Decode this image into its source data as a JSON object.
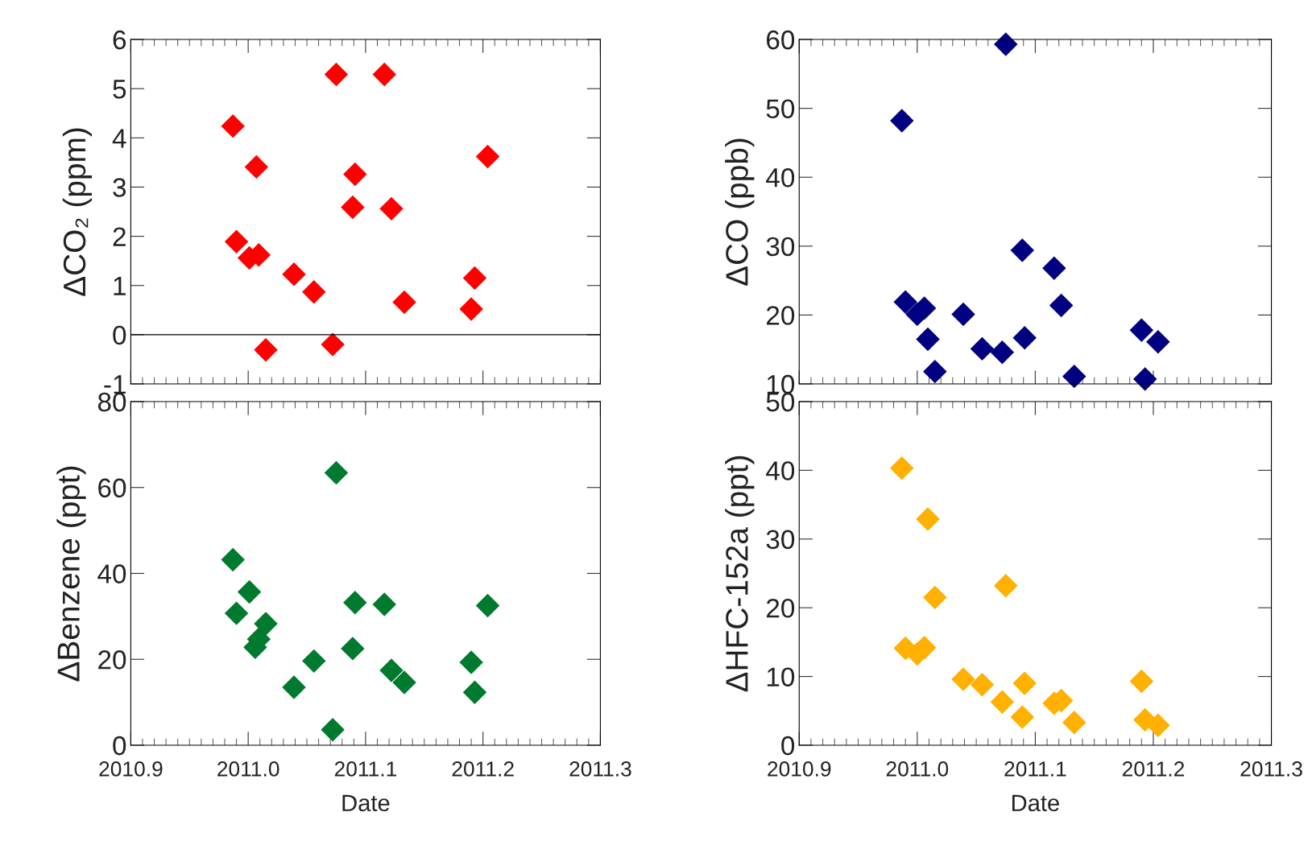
{
  "chart_data": [
    {
      "type": "scatter",
      "ylabel": "ΔCO₂ (ppm)",
      "marker": "diamond",
      "grid": false,
      "tick_labels": "y",
      "x": [
        2010.987,
        2010.99,
        2011.001,
        2011.009,
        2011.007,
        2011.015,
        2011.039,
        2011.056,
        2011.072,
        2011.075,
        2011.089,
        2011.091,
        2011.116,
        2011.122,
        2011.133,
        2011.19,
        2011.193,
        2011.204
      ],
      "series": [
        {
          "color": "#ff0000",
          "values": [
            4.24,
            1.89,
            1.56,
            1.62,
            3.41,
            -0.31,
            1.23,
            0.87,
            -0.2,
            5.29,
            2.59,
            3.26,
            5.29,
            2.56,
            0.66,
            0.52,
            1.15,
            3.62
          ]
        }
      ],
      "xlim": [
        2010.9,
        2011.3
      ],
      "xticks": [
        {
          "value": 2010.9,
          "label": null
        },
        {
          "value": 2011.0,
          "label": null
        },
        {
          "value": 2011.1,
          "label": null
        },
        {
          "value": 2011.2,
          "label": null
        },
        {
          "value": 2011.3,
          "label": null
        }
      ],
      "ylim": [
        -1,
        6
      ],
      "yticks": [
        -1,
        0,
        1,
        2,
        3,
        4,
        5,
        6
      ],
      "ref_lines": [
        {
          "axis": "y",
          "value": 0,
          "color": "#000000"
        }
      ]
    },
    {
      "type": "scatter",
      "ylabel": "ΔCO (ppb)",
      "marker": "diamond",
      "grid": false,
      "tick_labels": "y",
      "x": [
        2010.987,
        2010.99,
        2011.0,
        2011.006,
        2011.009,
        2011.015,
        2011.039,
        2011.055,
        2011.072,
        2011.075,
        2011.089,
        2011.091,
        2011.116,
        2011.122,
        2011.133,
        2011.19,
        2011.193,
        2011.204
      ],
      "series": [
        {
          "color": "#000080",
          "values": [
            48.2,
            21.9,
            20.1,
            21.0,
            16.5,
            11.8,
            20.1,
            15.1,
            14.6,
            59.3,
            29.4,
            16.7,
            26.8,
            21.4,
            11.1,
            17.8,
            10.7,
            16.1
          ]
        }
      ],
      "xlim": [
        2010.9,
        2011.3
      ],
      "xticks": [
        {
          "value": 2010.9,
          "label": null
        },
        {
          "value": 2011.0,
          "label": null
        },
        {
          "value": 2011.1,
          "label": null
        },
        {
          "value": 2011.2,
          "label": null
        },
        {
          "value": 2011.3,
          "label": null
        }
      ],
      "ylim": [
        10,
        60
      ],
      "yticks": [
        10,
        20,
        30,
        40,
        50,
        60
      ]
    },
    {
      "type": "scatter",
      "ylabel": "ΔBenzene (ppt)",
      "xlabel": "Date",
      "marker": "diamond",
      "grid": false,
      "x": [
        2010.987,
        2010.99,
        2011.001,
        2011.006,
        2011.009,
        2011.015,
        2011.039,
        2011.056,
        2011.072,
        2011.075,
        2011.089,
        2011.091,
        2011.116,
        2011.122,
        2011.133,
        2011.19,
        2011.193,
        2011.204
      ],
      "series": [
        {
          "color": "#007a2e",
          "values": [
            43.2,
            30.7,
            35.7,
            22.8,
            24.7,
            28.3,
            13.5,
            19.6,
            3.6,
            63.4,
            22.5,
            33.2,
            32.8,
            17.4,
            14.6,
            19.3,
            12.3,
            32.5
          ]
        }
      ],
      "xlim": [
        2010.9,
        2011.3
      ],
      "xticks": [
        {
          "value": 2010.9,
          "label": "2010.9"
        },
        {
          "value": 2011.0,
          "label": "2011.0"
        },
        {
          "value": 2011.1,
          "label": "2011.1"
        },
        {
          "value": 2011.2,
          "label": "2011.2"
        },
        {
          "value": 2011.3,
          "label": "2011.3"
        }
      ],
      "ylim": [
        0,
        80
      ],
      "yticks": [
        0,
        20,
        40,
        60,
        80
      ]
    },
    {
      "type": "scatter",
      "ylabel": "ΔHFC-152a (ppt)",
      "xlabel": "Date",
      "marker": "diamond",
      "grid": false,
      "x": [
        2010.987,
        2010.99,
        2011.0,
        2011.006,
        2011.009,
        2011.015,
        2011.039,
        2011.055,
        2011.072,
        2011.075,
        2011.089,
        2011.091,
        2011.116,
        2011.122,
        2011.133,
        2011.19,
        2011.193,
        2011.204
      ],
      "series": [
        {
          "color": "#ffb000",
          "values": [
            40.3,
            14.1,
            13.3,
            14.2,
            32.9,
            21.5,
            9.6,
            8.8,
            6.3,
            23.2,
            4.1,
            9.0,
            6.1,
            6.5,
            3.3,
            9.3,
            3.7,
            2.9
          ]
        }
      ],
      "xlim": [
        2010.9,
        2011.3
      ],
      "xticks": [
        {
          "value": 2010.9,
          "label": "2010.9"
        },
        {
          "value": 2011.0,
          "label": "2011.0"
        },
        {
          "value": 2011.1,
          "label": "2011.1"
        },
        {
          "value": 2011.2,
          "label": "2011.2"
        },
        {
          "value": 2011.3,
          "label": "2011.3"
        }
      ],
      "ylim": [
        0,
        50
      ],
      "yticks": [
        0,
        10,
        20,
        30,
        40,
        50
      ]
    }
  ]
}
